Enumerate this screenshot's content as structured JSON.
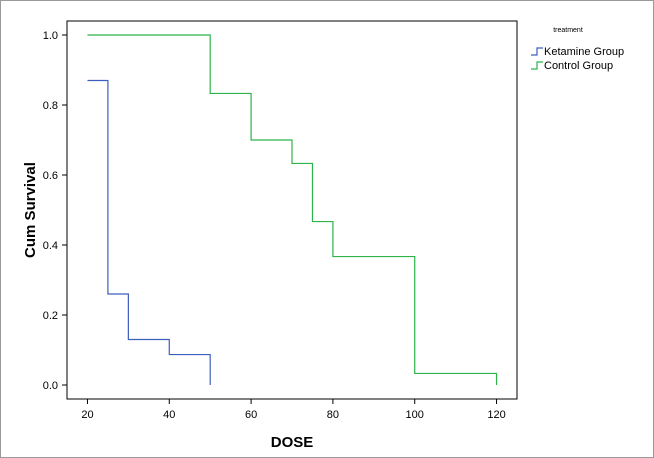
{
  "chart_data": {
    "type": "line",
    "step": true,
    "xlabel": "DOSE",
    "ylabel": "Cum Survival",
    "xlim": [
      15,
      125
    ],
    "ylim": [
      -0.04,
      1.04
    ],
    "xticks": [
      20,
      40,
      60,
      80,
      100,
      120
    ],
    "yticks": [
      0.0,
      0.2,
      0.4,
      0.6,
      0.8,
      1.0
    ],
    "ytick_labels": [
      "0.0",
      "0.2",
      "0.4",
      "0.6",
      "0.8",
      "1.0"
    ],
    "grid": false,
    "legend": {
      "title": "treatment",
      "placement": "outside-top-right"
    },
    "series": [
      {
        "name": "Ketamine Group",
        "color": "#3b5fbf",
        "x": [
          20,
          25,
          30,
          40,
          50
        ],
        "y": [
          0.87,
          0.26,
          0.13,
          0.087,
          0.0
        ]
      },
      {
        "name": "Control Group",
        "color": "#2eb34a",
        "x": [
          20,
          50,
          60,
          70,
          75,
          80,
          100,
          120
        ],
        "y": [
          1.0,
          0.833,
          0.7,
          0.633,
          0.467,
          0.367,
          0.033,
          0.0
        ]
      }
    ]
  }
}
